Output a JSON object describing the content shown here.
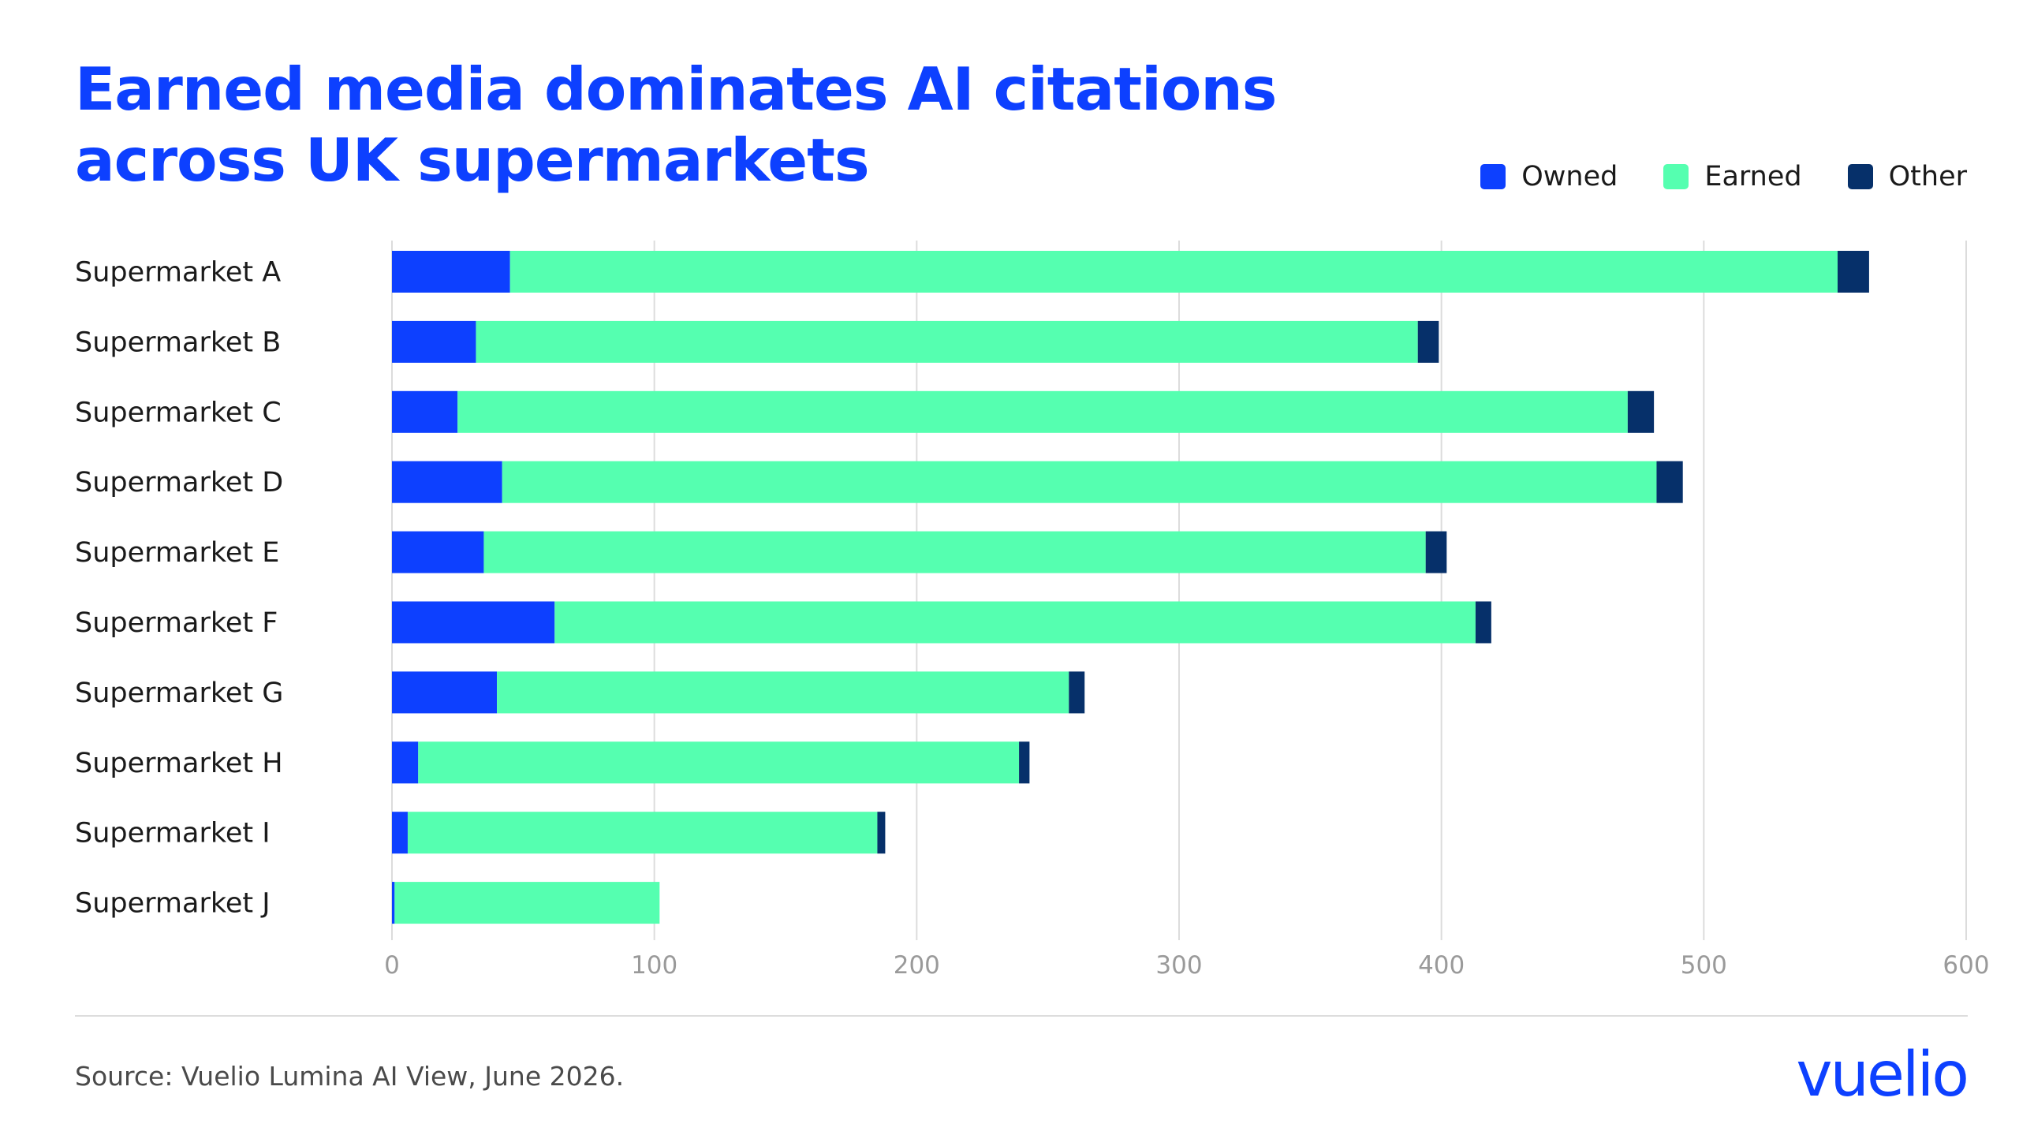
{
  "title": {
    "line1": "Earned media dominates AI citations",
    "line2": "across UK supermarkets"
  },
  "legend": [
    {
      "label": "Owned",
      "color": "#0d40ff"
    },
    {
      "label": "Earned",
      "color": "#55ffb0"
    },
    {
      "label": "Other",
      "color": "#06306a"
    }
  ],
  "chart_data": {
    "type": "bar",
    "orientation": "horizontal",
    "stacked": true,
    "categories": [
      "Supermarket A",
      "Supermarket B",
      "Supermarket C",
      "Supermarket D",
      "Supermarket E",
      "Supermarket F",
      "Supermarket G",
      "Supermarket H",
      "Supermarket I",
      "Supermarket J"
    ],
    "series": [
      {
        "name": "Owned",
        "color": "#0d40ff",
        "values": [
          45,
          32,
          25,
          42,
          35,
          62,
          40,
          10,
          6,
          1
        ]
      },
      {
        "name": "Earned",
        "color": "#55ffb0",
        "values": [
          506,
          359,
          446,
          440,
          359,
          351,
          218,
          229,
          179,
          101
        ]
      },
      {
        "name": "Other",
        "color": "#06306a",
        "values": [
          12,
          8,
          10,
          10,
          8,
          6,
          6,
          4,
          3,
          0
        ]
      }
    ],
    "x_ticks": [
      "0",
      "100",
      "200",
      "300",
      "400",
      "500",
      "600"
    ],
    "xlim": [
      0,
      600
    ],
    "grid": "vertical",
    "legend_position": "top-right"
  },
  "source": "Source: Vuelio Lumina AI View, June 2026.",
  "logo": {
    "text": "vuelio",
    "color": "#0d40ff"
  }
}
